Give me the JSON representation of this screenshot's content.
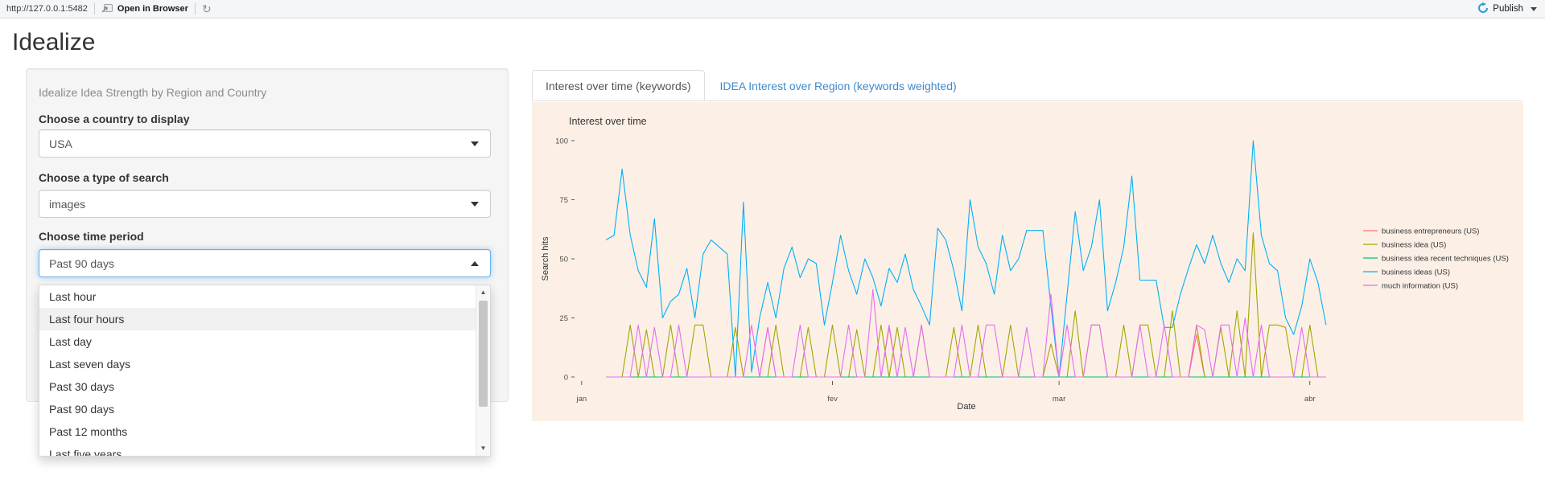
{
  "topbar": {
    "url": "http://127.0.0.1:5482",
    "open_in_browser": "Open in Browser",
    "publish_label": "Publish"
  },
  "page": {
    "title": "Idealize"
  },
  "sidebar": {
    "heading": "Idealize Idea Strength by Region and Country",
    "country": {
      "label": "Choose a country to display",
      "value": "USA"
    },
    "search_type": {
      "label": "Choose a type of search",
      "value": "images"
    },
    "time_period": {
      "label": "Choose time period",
      "value": "Past 90 days"
    },
    "dropdown": {
      "options": [
        "Last hour",
        "Last four hours",
        "Last day",
        "Last seven days",
        "Past 30 days",
        "Past 90 days",
        "Past 12 months",
        "Last five years"
      ],
      "highlighted": "Last four hours"
    }
  },
  "tabs": [
    {
      "label": "Interest over time (keywords)",
      "active": true
    },
    {
      "label": "IDEA Interest over Region (keywords weighted)",
      "active": false
    }
  ],
  "chart_data": {
    "type": "line",
    "title": "Interest over time",
    "xlabel": "Date",
    "ylabel": "Search hits",
    "ylim": [
      0,
      100
    ],
    "yticks": [
      0,
      25,
      50,
      75,
      100
    ],
    "xticks": [
      {
        "label": "jan",
        "day": -3
      },
      {
        "label": "fev",
        "day": 28
      },
      {
        "label": "mar",
        "day": 56
      },
      {
        "label": "abr",
        "day": 87
      }
    ],
    "grid": false,
    "legend_position": "right",
    "background": "#fcf0e6",
    "series": [
      {
        "name": "business entrepreneurs (US)",
        "color": "#F8766D",
        "values": [
          0,
          0,
          0,
          0,
          0,
          0,
          0,
          0,
          0,
          0,
          0,
          0,
          0,
          0,
          0,
          0,
          0,
          0,
          0,
          0,
          21,
          0,
          0,
          0,
          0,
          0,
          0,
          0,
          0,
          0,
          0,
          0,
          0,
          0,
          0,
          21,
          0,
          0,
          0,
          0,
          0,
          0,
          0,
          0,
          0,
          0,
          0,
          0,
          0,
          0,
          0,
          0,
          0,
          0,
          0,
          0,
          0,
          0,
          0,
          0,
          0,
          0,
          0,
          0,
          0,
          0,
          0,
          0,
          0,
          0,
          0,
          0,
          0,
          18,
          0,
          0,
          0,
          0,
          0,
          0,
          0,
          0,
          0,
          0,
          0,
          0,
          0,
          0,
          0,
          0
        ]
      },
      {
        "name": "business idea (US)",
        "color": "#A3A500",
        "values": [
          0,
          0,
          0,
          22,
          0,
          20,
          0,
          0,
          22,
          0,
          0,
          22,
          22,
          0,
          0,
          0,
          21,
          0,
          0,
          0,
          0,
          22,
          0,
          0,
          0,
          21,
          0,
          0,
          22,
          0,
          0,
          20,
          0,
          0,
          22,
          0,
          21,
          0,
          0,
          22,
          0,
          0,
          0,
          21,
          0,
          0,
          22,
          0,
          0,
          0,
          22,
          0,
          0,
          0,
          0,
          14,
          0,
          0,
          28,
          0,
          22,
          22,
          0,
          0,
          22,
          0,
          22,
          22,
          0,
          0,
          28,
          0,
          0,
          22,
          0,
          0,
          21,
          0,
          28,
          0,
          61,
          0,
          22,
          22,
          21,
          0,
          0,
          22,
          0,
          0
        ]
      },
      {
        "name": "business idea recent techniques (US)",
        "color": "#00BF7D",
        "values": [
          0,
          0,
          0,
          0,
          0,
          0,
          0,
          0,
          0,
          0,
          0,
          0,
          0,
          0,
          0,
          0,
          0,
          0,
          0,
          0,
          0,
          0,
          0,
          0,
          0,
          0,
          0,
          0,
          0,
          0,
          0,
          0,
          0,
          0,
          0,
          0,
          0,
          0,
          0,
          0,
          0,
          0,
          0,
          0,
          0,
          0,
          0,
          0,
          0,
          0,
          0,
          0,
          0,
          0,
          0,
          0,
          0,
          0,
          0,
          0,
          0,
          0,
          0,
          0,
          0,
          0,
          0,
          0,
          0,
          0,
          0,
          0,
          0,
          0,
          0,
          0,
          0,
          0,
          0,
          0,
          0,
          0,
          0,
          0,
          0,
          0,
          0,
          0,
          0,
          0
        ]
      },
      {
        "name": "business ideas (US)",
        "color": "#00B0F6",
        "values": [
          58,
          60,
          88,
          60,
          45,
          38,
          67,
          25,
          32,
          35,
          46,
          25,
          52,
          58,
          55,
          52,
          0,
          74,
          2,
          25,
          40,
          25,
          46,
          55,
          42,
          50,
          48,
          22,
          40,
          60,
          45,
          35,
          50,
          42,
          30,
          46,
          40,
          52,
          37,
          30,
          22,
          63,
          58,
          45,
          28,
          75,
          55,
          48,
          35,
          60,
          45,
          50,
          62,
          62,
          62,
          30,
          0,
          35,
          70,
          45,
          55,
          75,
          28,
          40,
          55,
          85,
          41,
          41,
          41,
          21,
          21,
          35,
          46,
          56,
          48,
          60,
          48,
          40,
          50,
          45,
          100,
          60,
          48,
          45,
          25,
          18,
          30,
          50,
          40,
          22
        ]
      },
      {
        "name": "much information (US)",
        "color": "#E76BF3",
        "values": [
          0,
          0,
          0,
          0,
          22,
          0,
          21,
          0,
          0,
          22,
          0,
          0,
          0,
          0,
          0,
          0,
          0,
          0,
          22,
          0,
          21,
          0,
          0,
          0,
          22,
          0,
          0,
          0,
          0,
          0,
          22,
          0,
          0,
          37,
          0,
          22,
          0,
          21,
          0,
          22,
          0,
          0,
          0,
          0,
          22,
          0,
          0,
          22,
          22,
          0,
          0,
          0,
          21,
          0,
          0,
          35,
          0,
          22,
          0,
          0,
          22,
          22,
          0,
          0,
          0,
          0,
          22,
          0,
          0,
          22,
          0,
          0,
          0,
          22,
          20,
          0,
          22,
          22,
          0,
          25,
          0,
          22,
          0,
          0,
          0,
          0,
          21,
          0,
          0,
          0
        ]
      }
    ]
  }
}
